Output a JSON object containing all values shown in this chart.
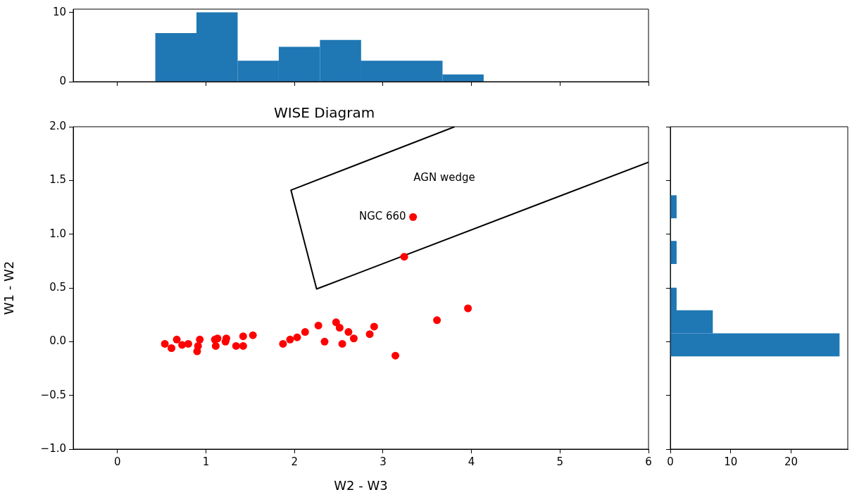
{
  "chart_data": [
    {
      "type": "histogram",
      "bins": [
        0.43,
        0.89,
        1.36,
        1.82,
        2.29,
        2.75,
        3.21,
        3.67,
        4.14
      ],
      "values": [
        7,
        10,
        3,
        5,
        6,
        3,
        3,
        1
      ],
      "color": "#1f77b4",
      "xlim": [
        -0.5,
        6
      ],
      "xticks": [
        0,
        1,
        2,
        3,
        4,
        5,
        6
      ],
      "ylim": [
        0,
        10.5
      ],
      "yticks": [
        0,
        10
      ],
      "tick_labels": "y",
      "grid": false,
      "legend": false
    },
    {
      "type": "scatter",
      "title": "WISE Diagram",
      "xlabel": "W2 - W3",
      "ylabel": "W1 - W2",
      "series": [
        {
          "type": "scatter",
          "color": "#ff0000",
          "marker": "circle",
          "x": [
            0.535,
            0.61,
            0.67,
            0.73,
            0.8,
            0.9,
            0.91,
            0.93,
            1.1,
            1.11,
            1.13,
            1.22,
            1.23,
            1.34,
            1.42,
            1.42,
            1.53,
            1.87,
            1.95,
            2.03,
            2.12,
            2.27,
            2.34,
            2.47,
            2.51,
            2.54,
            2.61,
            2.67,
            2.85,
            2.9,
            3.14,
            3.61,
            3.96,
            3.34,
            3.24
          ],
          "values": [
            -0.02,
            -0.06,
            0.02,
            -0.03,
            -0.02,
            -0.09,
            -0.04,
            0.02,
            0.02,
            -0.04,
            0.03,
            0.0,
            0.03,
            -0.04,
            -0.04,
            0.05,
            0.06,
            -0.02,
            0.02,
            0.04,
            0.09,
            0.15,
            0.0,
            0.18,
            0.13,
            -0.02,
            0.09,
            0.03,
            0.07,
            0.14,
            -0.13,
            0.2,
            0.31,
            1.16,
            0.79
          ]
        },
        {
          "type": "line",
          "color": "#000000",
          "marker": "none",
          "x": [
            3.81,
            1.96,
            2.25,
            6
          ],
          "values": [
            2.0,
            1.41,
            0.49,
            1.67
          ]
        }
      ],
      "xlim": [
        -0.5,
        6
      ],
      "xticks": [
        0,
        1,
        2,
        3,
        4,
        5,
        6
      ],
      "ylim": [
        -1,
        2
      ],
      "yticks": [
        {
          "value": -1,
          "label": "−1.0"
        },
        {
          "value": -0.5,
          "label": "−0.5"
        },
        {
          "value": 0,
          "label": "0.0"
        },
        {
          "value": 0.5,
          "label": "0.5"
        },
        {
          "value": 1,
          "label": "1.0"
        },
        {
          "value": 1.5,
          "label": "1.5"
        },
        {
          "value": 2,
          "label": "2.0"
        }
      ],
      "annotations": [
        "AGN wedge",
        {
          "text": "NGC 660",
          "x": 3.34,
          "y": 1.16
        }
      ],
      "grid": false,
      "legend": false
    },
    {
      "type": "histogram",
      "orientation": "horizontal",
      "bins": [
        -0.14,
        0.08,
        0.29,
        0.5,
        0.72,
        0.94,
        1.15,
        1.36
      ],
      "values": [
        28,
        7,
        1,
        0,
        1,
        0,
        1
      ],
      "color": "#1f77b4",
      "xlim": [
        0,
        29.4
      ],
      "xticks": [
        0,
        10,
        20
      ],
      "ylim": [
        -1,
        2
      ],
      "yticks": [
        {
          "value": -1,
          "label": null
        },
        {
          "value": -0.5,
          "label": null
        },
        {
          "value": 0,
          "label": null
        },
        {
          "value": 0.5,
          "label": null
        },
        {
          "value": 1,
          "label": null
        },
        {
          "value": 1.5,
          "label": null
        },
        {
          "value": 2,
          "label": null
        }
      ],
      "tick_labels": "x",
      "grid": false,
      "legend": false
    }
  ]
}
